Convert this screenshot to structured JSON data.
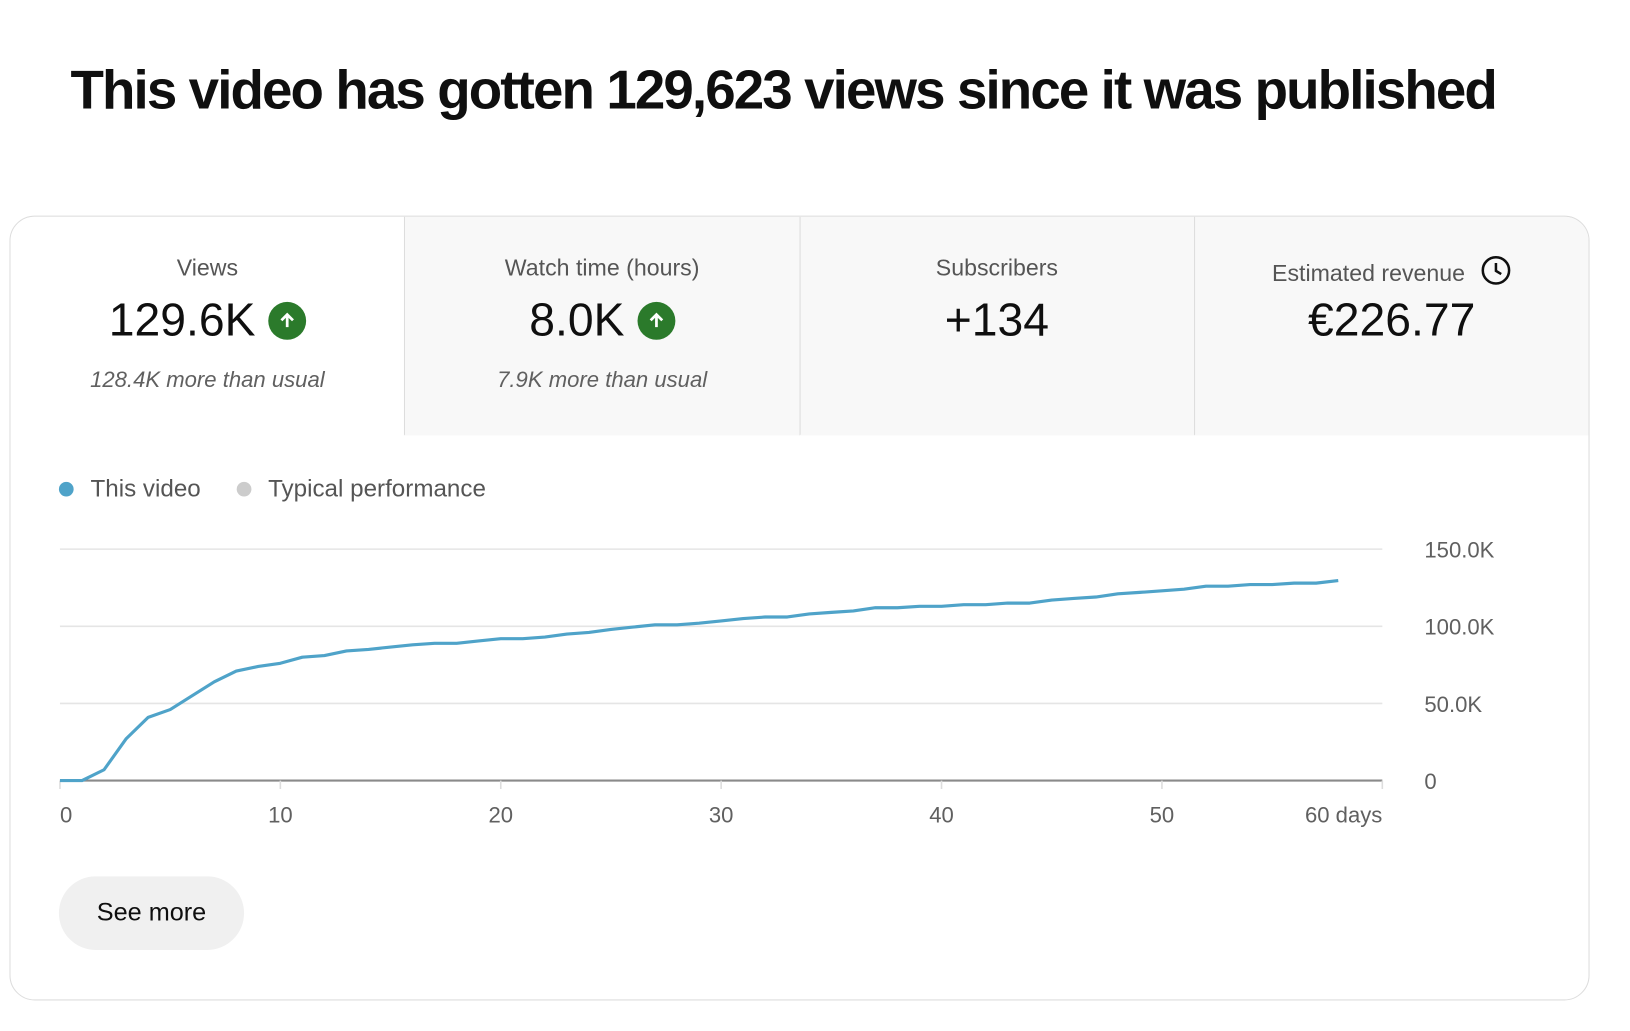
{
  "headline": "This video has gotten 129,623 views since it was published",
  "metrics": [
    {
      "label": "Views",
      "value": "129.6K",
      "trend": "up",
      "note": "128.4K more than usual"
    },
    {
      "label": "Watch time (hours)",
      "value": "8.0K",
      "trend": "up",
      "note": "7.9K more than usual"
    },
    {
      "label": "Subscribers",
      "value": "+134"
    },
    {
      "label": "Estimated revenue",
      "value": "€226.77",
      "icon": "clock-icon"
    }
  ],
  "colors": {
    "this_video": "#4fa3c9",
    "typical": "#cccccc",
    "trend_up": "#2b7a2b"
  },
  "see_more_label": "See more",
  "chart_data": {
    "type": "line",
    "legend": [
      "This video",
      "Typical performance"
    ],
    "legend_position": "top-left",
    "x_ticks": [
      "0",
      "10",
      "20",
      "30",
      "40",
      "50",
      "60 days"
    ],
    "x_tick_values": [
      0,
      10,
      20,
      30,
      40,
      50,
      60
    ],
    "y_ticks": [
      "0",
      "50.0K",
      "100.0K",
      "150.0K"
    ],
    "y_tick_values": [
      0,
      50000,
      100000,
      150000
    ],
    "xlim": [
      0,
      60
    ],
    "ylim": [
      0,
      150000
    ],
    "grid": true,
    "series": [
      {
        "name": "This video",
        "x": [
          0,
          1,
          2,
          3,
          4,
          5,
          6,
          7,
          8,
          9,
          10,
          11,
          12,
          13,
          14,
          15,
          16,
          17,
          18,
          19,
          20,
          21,
          22,
          23,
          24,
          25,
          26,
          27,
          28,
          29,
          30,
          31,
          32,
          33,
          34,
          35,
          36,
          37,
          38,
          39,
          40,
          41,
          42,
          43,
          44,
          45,
          46,
          47,
          48,
          49,
          50,
          51,
          52,
          53,
          54,
          55,
          56,
          57,
          58
        ],
        "y": [
          0,
          0,
          7000,
          27000,
          41000,
          46000,
          55000,
          64000,
          71000,
          74000,
          76000,
          80000,
          81000,
          84000,
          85000,
          86500,
          88000,
          89000,
          89000,
          90500,
          92000,
          92000,
          93000,
          95000,
          96000,
          98000,
          99500,
          101000,
          101000,
          102000,
          103500,
          105000,
          106000,
          106000,
          108000,
          109000,
          110000,
          112000,
          112000,
          113000,
          113000,
          114000,
          114000,
          115000,
          115000,
          117000,
          118000,
          119000,
          121000,
          122000,
          123000,
          124000,
          126000,
          126000,
          127000,
          127000,
          128000,
          128000,
          129623
        ]
      }
    ]
  }
}
